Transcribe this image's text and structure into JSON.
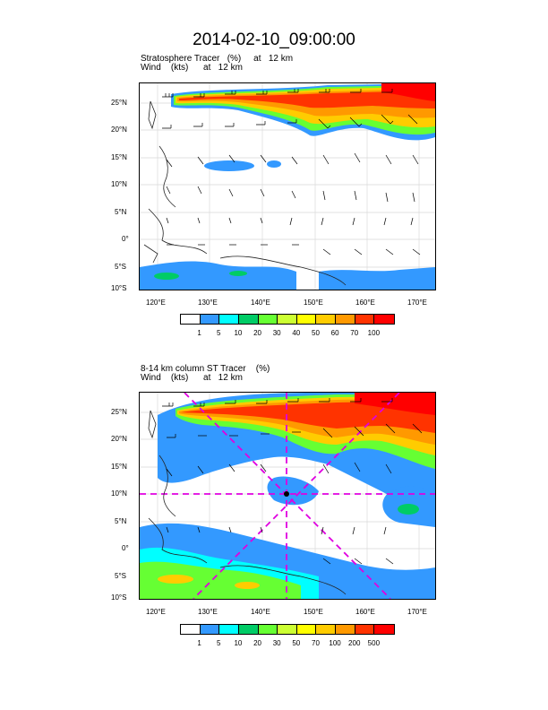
{
  "title": "2014-02-10_09:00:00",
  "panel1": {
    "line1": "Stratosphere Tracer   (%)     at   12 km",
    "line2": "Wind    (kts)      at   12 km",
    "colorbar_labels": [
      "1",
      "5",
      "10",
      "20",
      "30",
      "40",
      "50",
      "60",
      "70",
      "100"
    ],
    "colorbar_colors": [
      "#ffffff",
      "#3399ff",
      "#00ffff",
      "#00cc66",
      "#66ff33",
      "#ccff33",
      "#ffff00",
      "#ffcc00",
      "#ff9900",
      "#ff3300",
      "#ff0000"
    ]
  },
  "panel2": {
    "line1": "8-14 km column ST Tracer    (%)",
    "line2": "Wind    (kts)      at   12 km",
    "colorbar_labels": [
      "1",
      "5",
      "10",
      "20",
      "30",
      "50",
      "70",
      "100",
      "200",
      "500"
    ],
    "colorbar_colors": [
      "#ffffff",
      "#3399ff",
      "#00ffff",
      "#00cc66",
      "#66ff33",
      "#ccff33",
      "#ffff00",
      "#ffcc00",
      "#ff9900",
      "#ff3300",
      "#ff0000"
    ]
  },
  "lat_labels": [
    "25°N",
    "20°N",
    "15°N",
    "10°N",
    "5°N",
    "0°",
    "5°S",
    "10°S"
  ],
  "lon_labels": [
    "120°E",
    "130°E",
    "140°E",
    "150°E",
    "160°E",
    "170°E"
  ]
}
